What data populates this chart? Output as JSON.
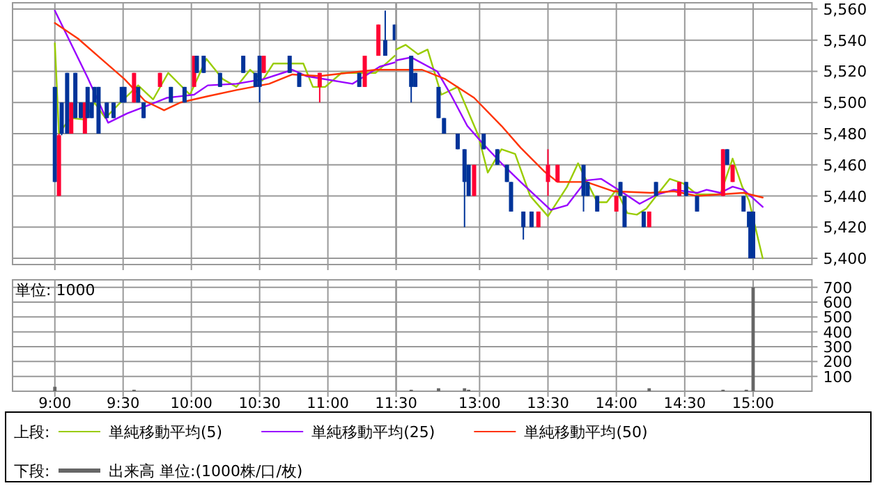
{
  "chart_data": [
    {
      "type": "candlestick",
      "legend_title": "上段:",
      "legend": "bottom",
      "grid": true,
      "tick_labels": false,
      "xlim": [
        8.69,
        11.5
      ],
      "ylim": [
        5396,
        5564
      ],
      "xticks": [
        {
          "value": 9,
          "label": null
        },
        {
          "value": 9.5,
          "label": null
        },
        {
          "value": 10,
          "label": null
        },
        {
          "value": 10.5,
          "label": null
        },
        {
          "value": 11,
          "label": null
        },
        {
          "value": 11.5,
          "label": null
        }
      ],
      "yticks": [
        {
          "value": 5400,
          "label": null
        },
        {
          "value": 5420,
          "label": null
        },
        {
          "value": 5440,
          "label": null
        },
        {
          "value": 5460,
          "label": null
        },
        {
          "value": 5480,
          "label": null
        },
        {
          "value": 5500,
          "label": null
        },
        {
          "value": 5520,
          "label": null
        },
        {
          "value": 5540,
          "label": null
        },
        {
          "value": 5560,
          "label": null
        }
      ],
      "x": [
        9,
        9.03,
        9.05,
        9.09,
        9.12,
        9.15,
        9.19,
        9.22,
        9.24,
        9.27,
        9.29,
        9.32,
        9.38,
        9.43,
        9.49,
        9.51,
        9.58,
        9.61,
        9.65,
        9.77,
        9.85,
        9.95,
        10.02,
        10.04,
        10.09,
        10.21,
        10.38,
        10.47,
        10.5,
        10.53,
        10.72,
        10.79,
        10.94,
        11.23,
        11.27,
        11.37,
        11.42,
        11.49
      ],
      "ohlc": [
        [
          5510,
          5510,
          5449,
          5449
        ],
        [
          5440,
          5480,
          5440,
          5479
        ],
        [
          5500,
          5500,
          5479,
          5480
        ],
        [
          5519,
          5519,
          5480,
          5480
        ],
        [
          5480,
          5500,
          5480,
          5500
        ],
        [
          5519,
          5519,
          5490,
          5490
        ],
        [
          5500,
          5500,
          5490,
          5490
        ],
        [
          5480,
          5500,
          5480,
          5500
        ],
        [
          5510,
          5510,
          5490,
          5490
        ],
        [
          5500,
          5500,
          5490,
          5490
        ],
        [
          5510,
          5510,
          5500,
          5500
        ],
        [
          5510,
          5510,
          5480,
          5480
        ],
        [
          5500,
          5500,
          5490,
          5490
        ],
        [
          5500,
          5500,
          5490,
          5490
        ],
        [
          5510,
          5510,
          5500,
          5500
        ],
        [
          5510,
          5510,
          5500,
          5500
        ],
        [
          5500,
          5519,
          5500,
          5519
        ],
        [
          5510,
          5510,
          5500,
          5500
        ],
        [
          5500,
          5500,
          5490,
          5490
        ],
        [
          5510,
          5519,
          5510,
          5519
        ],
        [
          5510,
          5510,
          5500,
          5500
        ],
        [
          5510,
          5510,
          5500,
          5500
        ],
        [
          5510,
          5530,
          5510,
          5530
        ],
        [
          5530,
          5530,
          5519,
          5519
        ],
        [
          5530,
          5530,
          5519,
          5519
        ],
        [
          5519,
          5519,
          5510,
          5510
        ],
        [
          5530,
          5530,
          5519,
          5519
        ],
        [
          5519,
          5519,
          5510,
          5510
        ],
        [
          5530,
          5530,
          5500,
          5510
        ],
        [
          5519,
          5530,
          5519,
          5530
        ],
        [
          5530,
          5530,
          5519,
          5519
        ],
        [
          5519,
          5519,
          5510,
          5510
        ],
        [
          5510,
          5519,
          5500,
          5519
        ],
        [
          5519,
          5519,
          5510,
          5510
        ],
        [
          5510,
          5530,
          5510,
          5530
        ],
        [
          5530,
          5550,
          5530,
          5550
        ],
        [
          5540,
          5559,
          5530,
          5530
        ],
        [
          5550,
          5550,
          5540,
          5540
        ]
      ],
      "colors": [
        "#003399",
        "#ff0033",
        "#003399",
        "#003399",
        "#ff0033",
        "#003399",
        "#003399",
        "#ff0033",
        "#003399",
        "#003399",
        "#003399",
        "#003399",
        "#003399",
        "#003399",
        "#003399",
        "#003399",
        "#ff0033",
        "#003399",
        "#003399",
        "#ff0033",
        "#003399",
        "#003399",
        "#ff0033",
        "#003399",
        "#003399",
        "#003399",
        "#003399",
        "#003399",
        "#003399",
        "#ff0033",
        "#003399",
        "#003399",
        "#ff0033",
        "#003399",
        "#ff0033",
        "#ff0033",
        "#003399",
        "#003399"
      ],
      "series": [
        {
          "type": "line",
          "name": "単純移動平均(5)",
          "color": "#99cc00",
          "x": [
            9,
            9.03,
            9.07,
            9.12,
            9.22,
            9.29,
            9.37,
            9.48,
            9.61,
            9.72,
            9.83,
            9.99,
            10.11,
            10.23,
            10.33,
            10.43,
            10.52,
            10.6,
            10.82,
            10.89,
            10.98,
            11.1,
            11.35,
            11.49
          ],
          "values": [
            5538,
            5480,
            5485,
            5490,
            5489,
            5500,
            5490,
            5500,
            5511,
            5502,
            5519,
            5505,
            5528,
            5515,
            5510,
            5521,
            5514,
            5525,
            5525,
            5510,
            5510,
            5519,
            5519,
            5530
          ]
        },
        {
          "type": "line",
          "name": "単純移動平均(25)",
          "color": "#9900ff",
          "x": [
            9,
            9.24,
            9.39,
            9.53,
            9.65,
            9.82,
            10.02,
            10.12,
            10.33,
            10.53,
            10.74,
            10.84,
            11.18,
            11.38,
            11.5
          ],
          "values": [
            5559,
            5516,
            5487,
            5493,
            5497,
            5503,
            5505,
            5511,
            5512,
            5515,
            5521,
            5517,
            5512,
            5523,
            5526
          ]
        },
        {
          "type": "line",
          "name": "単純移動平均(50)",
          "color": "#ff3300",
          "x": [
            9,
            9.17,
            9.34,
            9.51,
            9.66,
            9.8,
            9.92,
            10.12,
            10.33,
            10.57,
            10.74,
            10.94,
            11.04,
            11.35,
            11.5
          ],
          "values": [
            5551,
            5541,
            5528,
            5515,
            5501,
            5495,
            5500,
            5504,
            5508,
            5512,
            5518,
            5517,
            5518,
            5521,
            5521
          ]
        }
      ]
    },
    {
      "type": "candlestick",
      "grid": true,
      "tick_labels": "y",
      "xlim": [
        12.39,
        15.43
      ],
      "ylim": [
        5396,
        5564
      ],
      "xticks": [
        {
          "value": 13,
          "label": null
        },
        {
          "value": 13.5,
          "label": null
        },
        {
          "value": 14,
          "label": null
        },
        {
          "value": 14.5,
          "label": null
        },
        {
          "value": 15,
          "label": null
        }
      ],
      "yticks": [
        {
          "value": 5400,
          "label": "5,400"
        },
        {
          "value": 5420,
          "label": "5,420"
        },
        {
          "value": 5440,
          "label": "5,440"
        },
        {
          "value": 5460,
          "label": "5,460"
        },
        {
          "value": 5480,
          "label": "5,480"
        },
        {
          "value": 5500,
          "label": "5,500"
        },
        {
          "value": 5520,
          "label": "5,520"
        },
        {
          "value": 5540,
          "label": "5,540"
        },
        {
          "value": 5560,
          "label": "5,560"
        }
      ],
      "x": [
        12.5,
        12.53,
        12.7,
        12.74,
        12.84,
        12.89,
        12.92,
        12.96,
        13.03,
        13.13,
        13.2,
        13.23,
        13.32,
        13.38,
        13.43,
        13.5,
        13.57,
        13.76,
        13.79,
        13.86,
        14,
        14.03,
        14.06,
        14.2,
        14.24,
        14.29,
        14.46,
        14.51,
        14.59,
        14.78,
        14.81,
        14.85,
        14.93,
        14.97,
        14.98,
        15
      ],
      "ohlc": [
        [
          5530,
          5530,
          5500,
          5510
        ],
        [
          5519,
          5519,
          5510,
          5510
        ],
        [
          5510,
          5510,
          5490,
          5490
        ],
        [
          5490,
          5490,
          5480,
          5480
        ],
        [
          5480,
          5480,
          5470,
          5470
        ],
        [
          5470,
          5470,
          5420,
          5449
        ],
        [
          5460,
          5460,
          5440,
          5440
        ],
        [
          5440,
          5460,
          5440,
          5460
        ],
        [
          5480,
          5480,
          5470,
          5470
        ],
        [
          5470,
          5470,
          5460,
          5460
        ],
        [
          5460,
          5460,
          5449,
          5449
        ],
        [
          5449,
          5449,
          5430,
          5430
        ],
        [
          5430,
          5430,
          5412,
          5420
        ],
        [
          5430,
          5430,
          5420,
          5420
        ],
        [
          5420,
          5430,
          5420,
          5430
        ],
        [
          5449,
          5470,
          5440,
          5460
        ],
        [
          5449,
          5460,
          5449,
          5460
        ],
        [
          5460,
          5460,
          5430,
          5440
        ],
        [
          5449,
          5449,
          5440,
          5440
        ],
        [
          5440,
          5440,
          5430,
          5430
        ],
        [
          5430,
          5440,
          5430,
          5440
        ],
        [
          5449,
          5449,
          5440,
          5440
        ],
        [
          5440,
          5440,
          5420,
          5420
        ],
        [
          5430,
          5430,
          5420,
          5420
        ],
        [
          5420,
          5430,
          5420,
          5430
        ],
        [
          5449,
          5449,
          5440,
          5440
        ],
        [
          5440,
          5449,
          5440,
          5449
        ],
        [
          5449,
          5449,
          5440,
          5440
        ],
        [
          5440,
          5440,
          5430,
          5430
        ],
        [
          5440,
          5470,
          5440,
          5470
        ],
        [
          5470,
          5470,
          5460,
          5460
        ],
        [
          5449,
          5460,
          5449,
          5460
        ],
        [
          5440,
          5440,
          5430,
          5430
        ],
        [
          5430,
          5430,
          5420,
          5420
        ],
        [
          5420,
          5420,
          5400,
          5400
        ],
        [
          5430,
          5430,
          5400,
          5400
        ]
      ],
      "colors": [
        "#003399",
        "#003399",
        "#003399",
        "#003399",
        "#003399",
        "#003399",
        "#003399",
        "#ff0033",
        "#003399",
        "#003399",
        "#003399",
        "#003399",
        "#003399",
        "#003399",
        "#ff0033",
        "#ff0033",
        "#ff0033",
        "#003399",
        "#003399",
        "#003399",
        "#ff0033",
        "#003399",
        "#003399",
        "#003399",
        "#ff0033",
        "#003399",
        "#ff0033",
        "#003399",
        "#003399",
        "#ff0033",
        "#003399",
        "#ff0033",
        "#003399",
        "#003399",
        "#003399",
        "#003399"
      ],
      "series": [
        {
          "type": "line",
          "color": "#99cc00",
          "x": [
            12.39,
            12.46,
            12.55,
            12.62,
            12.72,
            12.84,
            12.99,
            13.06,
            13.16,
            13.26,
            13.37,
            13.5,
            13.64,
            13.72,
            13.78,
            13.86,
            13.93,
            14,
            14.08,
            14.15,
            14.22,
            14.3,
            14.39,
            14.49,
            14.59,
            14.76,
            14.85,
            14.92,
            14.97,
            15.07
          ],
          "values": [
            5534,
            5537,
            5531,
            5534,
            5505,
            5510,
            5479,
            5455,
            5470,
            5467,
            5440,
            5427,
            5446,
            5461,
            5450,
            5436,
            5436,
            5444,
            5429,
            5428,
            5432,
            5441,
            5451,
            5448,
            5441,
            5441,
            5464,
            5446,
            5437,
            5400
          ]
        },
        {
          "type": "line",
          "color": "#9900ff",
          "x": [
            12.39,
            12.5,
            12.69,
            12.79,
            12.91,
            13.03,
            13.16,
            13.3,
            13.52,
            13.64,
            13.78,
            13.89,
            14.05,
            14.17,
            14.3,
            14.42,
            14.59,
            14.66,
            14.76,
            14.85,
            14.93,
            15.07
          ],
          "values": [
            5527,
            5529,
            5520,
            5505,
            5485,
            5473,
            5461,
            5449,
            5431,
            5434,
            5450,
            5451,
            5442,
            5435,
            5441,
            5444,
            5442,
            5444,
            5442,
            5446,
            5444,
            5433
          ]
        },
        {
          "type": "line",
          "color": "#ff3300",
          "x": [
            12.39,
            12.58,
            12.75,
            12.96,
            13.16,
            13.3,
            13.47,
            13.57,
            13.78,
            13.98,
            14.25,
            14.42,
            14.59,
            14.76,
            14.93,
            15.07
          ],
          "values": [
            5521,
            5521,
            5515,
            5503,
            5485,
            5471,
            5456,
            5449,
            5449,
            5443,
            5442,
            5443,
            5440,
            5441,
            5442,
            5439
          ]
        }
      ]
    },
    {
      "type": "bar",
      "legend_title": "下段:",
      "legend": "bottom",
      "grid": true,
      "tick_labels": "x",
      "annotations": [
        "単位: 1000"
      ],
      "xlim": [
        8.69,
        11.5
      ],
      "ylim": [
        0,
        750
      ],
      "xticks": [
        {
          "value": 9,
          "label": "9:00"
        },
        {
          "value": 9.5,
          "label": "9:30"
        },
        {
          "value": 10,
          "label": "10:00"
        },
        {
          "value": 10.5,
          "label": "10:30"
        },
        {
          "value": 11,
          "label": "11:00"
        },
        {
          "value": 11.5,
          "label": "11:30"
        }
      ],
      "yticks": [
        {
          "value": 100,
          "label": null
        },
        {
          "value": 200,
          "label": null
        },
        {
          "value": 300,
          "label": null
        },
        {
          "value": 400,
          "label": null
        },
        {
          "value": 500,
          "label": null
        },
        {
          "value": 600,
          "label": null
        },
        {
          "value": 700,
          "label": null
        }
      ],
      "series": [
        {
          "name": "出来高 単位:(1000株/口/枚)",
          "color": "#666666",
          "x": [
            9,
            9.58
          ],
          "values": [
            30,
            10
          ]
        }
      ]
    },
    {
      "type": "bar",
      "grid": true,
      "xlim": [
        12.39,
        15.43
      ],
      "ylim": [
        0,
        750
      ],
      "xticks": [
        {
          "value": 13,
          "label": "13:00"
        },
        {
          "value": 13.5,
          "label": "13:30"
        },
        {
          "value": 14,
          "label": "14:00"
        },
        {
          "value": 14.5,
          "label": "14:30"
        },
        {
          "value": 15,
          "label": "15:00"
        }
      ],
      "yticks": [
        100,
        200,
        300,
        400,
        500,
        600,
        700
      ],
      "series": [
        {
          "color": "#666666",
          "x": [
            12.5,
            12.7,
            12.89,
            12.92,
            14.24,
            14.78,
            14.95,
            15
          ],
          "values": [
            10,
            20,
            20,
            10,
            20,
            10,
            10,
            700
          ]
        }
      ]
    }
  ]
}
